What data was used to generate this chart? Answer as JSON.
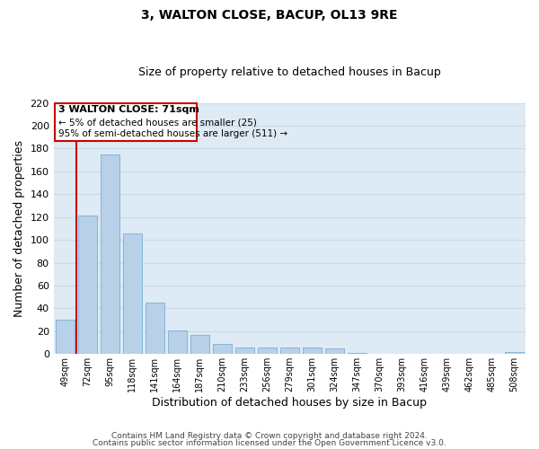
{
  "title": "3, WALTON CLOSE, BACUP, OL13 9RE",
  "subtitle": "Size of property relative to detached houses in Bacup",
  "xlabel": "Distribution of detached houses by size in Bacup",
  "ylabel": "Number of detached properties",
  "bar_labels": [
    "49sqm",
    "72sqm",
    "95sqm",
    "118sqm",
    "141sqm",
    "164sqm",
    "187sqm",
    "210sqm",
    "233sqm",
    "256sqm",
    "279sqm",
    "301sqm",
    "324sqm",
    "347sqm",
    "370sqm",
    "393sqm",
    "416sqm",
    "439sqm",
    "462sqm",
    "485sqm",
    "508sqm"
  ],
  "bar_values": [
    30,
    121,
    175,
    106,
    45,
    21,
    17,
    9,
    6,
    6,
    6,
    6,
    5,
    1,
    0,
    0,
    0,
    0,
    0,
    0,
    2
  ],
  "bar_color": "#b8d0e8",
  "bar_edge_color": "#7aafd4",
  "grid_color": "#c8dcea",
  "background_color": "#deeaf4",
  "ylim": [
    0,
    220
  ],
  "yticks": [
    0,
    20,
    40,
    60,
    80,
    100,
    120,
    140,
    160,
    180,
    200,
    220
  ],
  "annotation_title": "3 WALTON CLOSE: 71sqm",
  "annotation_line1": "← 5% of detached houses are smaller (25)",
  "annotation_line2": "95% of semi-detached houses are larger (511) →",
  "annotation_box_color": "#ffffff",
  "annotation_border_color": "#cc0000",
  "vline_color": "#cc0000",
  "footer1": "Contains HM Land Registry data © Crown copyright and database right 2024.",
  "footer2": "Contains public sector information licensed under the Open Government Licence v3.0."
}
